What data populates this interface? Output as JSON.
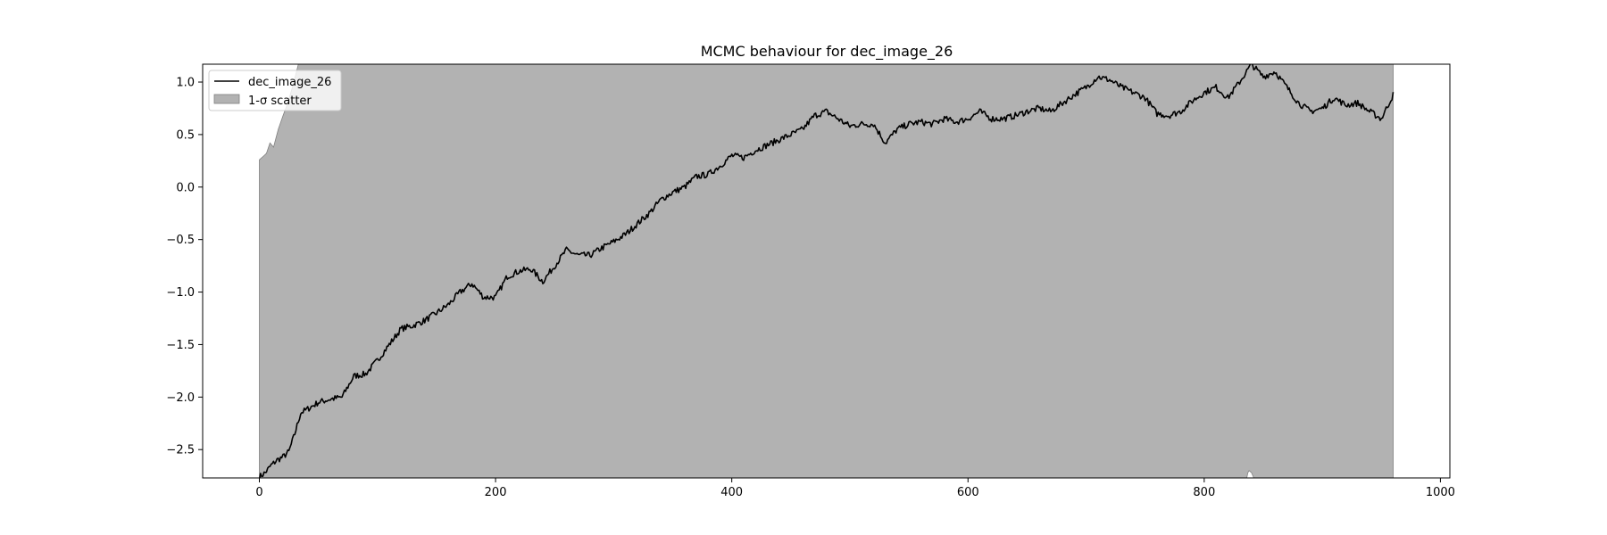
{
  "chart_data": {
    "type": "line",
    "title": "MCMC behaviour for dec_image_26",
    "xlabel": "",
    "ylabel": "",
    "xlim": [
      -48,
      1008
    ],
    "ylim": [
      -2.77,
      1.17
    ],
    "grid": false,
    "legend_position": "top-left",
    "x_ticks": [
      0,
      200,
      400,
      600,
      800,
      1000
    ],
    "y_ticks": [
      -2.5,
      -2.0,
      -1.5,
      -1.0,
      -0.5,
      0.0,
      0.5,
      1.0
    ],
    "x_tick_labels": [
      "0",
      "200",
      "400",
      "600",
      "800",
      "1000"
    ],
    "y_tick_labels": [
      "−2.5",
      "−2.0",
      "−1.5",
      "−1.0",
      "−0.5",
      "0.0",
      "0.5",
      "1.0"
    ],
    "x_max": 960,
    "series": [
      {
        "name": "dec_image_26",
        "kind": "line",
        "color": "#000000",
        "anchors": [
          [
            0,
            -2.76
          ],
          [
            5,
            -2.72
          ],
          [
            10,
            -2.65
          ],
          [
            15,
            -2.6
          ],
          [
            20,
            -2.57
          ],
          [
            25,
            -2.52
          ],
          [
            30,
            -2.35
          ],
          [
            35,
            -2.15
          ],
          [
            40,
            -2.12
          ],
          [
            50,
            -2.05
          ],
          [
            60,
            -2.02
          ],
          [
            70,
            -2.0
          ],
          [
            80,
            -1.8
          ],
          [
            90,
            -1.78
          ],
          [
            100,
            -1.65
          ],
          [
            110,
            -1.5
          ],
          [
            120,
            -1.35
          ],
          [
            130,
            -1.32
          ],
          [
            140,
            -1.27
          ],
          [
            150,
            -1.2
          ],
          [
            160,
            -1.12
          ],
          [
            170,
            -1.0
          ],
          [
            180,
            -0.92
          ],
          [
            190,
            -1.05
          ],
          [
            200,
            -1.05
          ],
          [
            210,
            -0.85
          ],
          [
            220,
            -0.8
          ],
          [
            230,
            -0.78
          ],
          [
            240,
            -0.9
          ],
          [
            250,
            -0.75
          ],
          [
            260,
            -0.6
          ],
          [
            270,
            -0.65
          ],
          [
            280,
            -0.65
          ],
          [
            290,
            -0.58
          ],
          [
            300,
            -0.52
          ],
          [
            310,
            -0.45
          ],
          [
            320,
            -0.35
          ],
          [
            330,
            -0.25
          ],
          [
            340,
            -0.12
          ],
          [
            350,
            -0.05
          ],
          [
            360,
            0.0
          ],
          [
            370,
            0.1
          ],
          [
            380,
            0.12
          ],
          [
            390,
            0.2
          ],
          [
            400,
            0.3
          ],
          [
            410,
            0.28
          ],
          [
            420,
            0.35
          ],
          [
            430,
            0.4
          ],
          [
            440,
            0.45
          ],
          [
            450,
            0.5
          ],
          [
            460,
            0.55
          ],
          [
            470,
            0.68
          ],
          [
            480,
            0.72
          ],
          [
            490,
            0.65
          ],
          [
            500,
            0.58
          ],
          [
            510,
            0.6
          ],
          [
            520,
            0.6
          ],
          [
            530,
            0.42
          ],
          [
            540,
            0.55
          ],
          [
            550,
            0.6
          ],
          [
            560,
            0.62
          ],
          [
            570,
            0.6
          ],
          [
            580,
            0.65
          ],
          [
            590,
            0.62
          ],
          [
            600,
            0.65
          ],
          [
            610,
            0.72
          ],
          [
            620,
            0.65
          ],
          [
            630,
            0.65
          ],
          [
            640,
            0.68
          ],
          [
            650,
            0.72
          ],
          [
            660,
            0.75
          ],
          [
            670,
            0.72
          ],
          [
            680,
            0.8
          ],
          [
            690,
            0.88
          ],
          [
            700,
            0.95
          ],
          [
            710,
            1.05
          ],
          [
            720,
            1.02
          ],
          [
            730,
            0.95
          ],
          [
            740,
            0.9
          ],
          [
            750,
            0.85
          ],
          [
            760,
            0.7
          ],
          [
            770,
            0.68
          ],
          [
            780,
            0.72
          ],
          [
            790,
            0.82
          ],
          [
            800,
            0.9
          ],
          [
            810,
            0.95
          ],
          [
            820,
            0.85
          ],
          [
            830,
            1.0
          ],
          [
            840,
            1.17
          ],
          [
            850,
            1.05
          ],
          [
            860,
            1.1
          ],
          [
            870,
            0.95
          ],
          [
            880,
            0.8
          ],
          [
            890,
            0.72
          ],
          [
            900,
            0.75
          ],
          [
            910,
            0.85
          ],
          [
            920,
            0.78
          ],
          [
            930,
            0.8
          ],
          [
            940,
            0.72
          ],
          [
            950,
            0.65
          ],
          [
            960,
            0.88
          ]
        ]
      },
      {
        "name": "1-σ scatter",
        "kind": "band",
        "color": "#b2b2b2",
        "edge_color": "#808080",
        "upper_anchors": [
          [
            0,
            0.26
          ],
          [
            4,
            0.3
          ],
          [
            6,
            0.32
          ],
          [
            9,
            0.42
          ],
          [
            12,
            0.38
          ],
          [
            16,
            0.55
          ],
          [
            20,
            0.68
          ],
          [
            24,
            0.8
          ],
          [
            28,
            0.95
          ],
          [
            31,
            1.08
          ],
          [
            33,
            1.17
          ]
        ],
        "lower_anchors": [
          [
            836,
            -2.77
          ],
          [
            837,
            -2.72
          ],
          [
            838,
            -2.7
          ],
          [
            840,
            -2.72
          ],
          [
            842,
            -2.77
          ]
        ]
      }
    ]
  }
}
